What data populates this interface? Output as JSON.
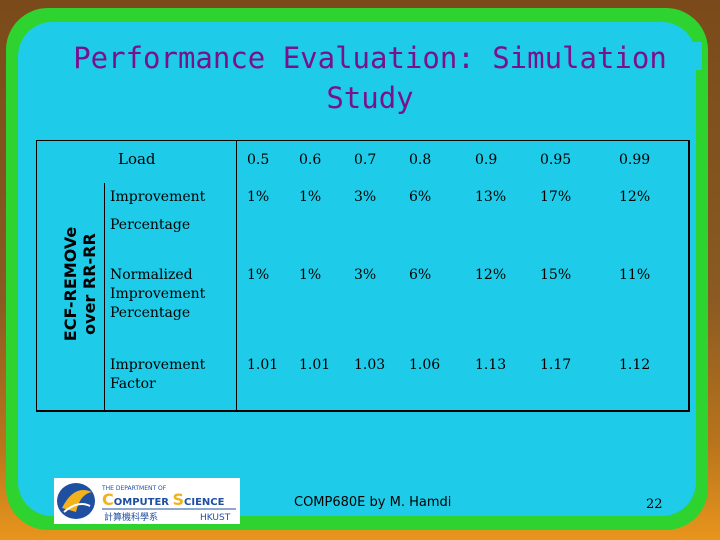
{
  "slide": {
    "title": "Performance Evaluation: Simulation Study",
    "side_label": [
      "ECF-REMOVe",
      "over RR-RR"
    ],
    "footer": "COMP680E by M. Hamdi",
    "page_number": "22"
  },
  "logo": {
    "line1": "THE DEPARTMENT OF",
    "line2a": "C",
    "line2b": "OMPUTER ",
    "line2c": "S",
    "line2d": "CIENCE",
    "line3a": "計算機科學系",
    "line3b": "HKUST"
  },
  "table": {
    "header_label": "Load",
    "loads": [
      "0.5",
      "0.6",
      "0.7",
      "0.8",
      "0.9",
      "0.95",
      "0.99"
    ],
    "rows": [
      {
        "label": [
          "Improvement",
          "Percentage"
        ],
        "values": [
          "1%",
          "1%",
          "3%",
          "6%",
          "13%",
          "17%",
          "12%"
        ]
      },
      {
        "label": [
          "Normalized",
          "Improvement",
          "Percentage"
        ],
        "values": [
          "1%",
          "1%",
          "3%",
          "6%",
          "12%",
          "15%",
          "11%"
        ]
      },
      {
        "label": [
          "Improvement",
          "Factor"
        ],
        "values": [
          "1.01",
          "1.01",
          "1.03",
          "1.06",
          "1.13",
          "1.17",
          "1.12"
        ]
      }
    ]
  }
}
